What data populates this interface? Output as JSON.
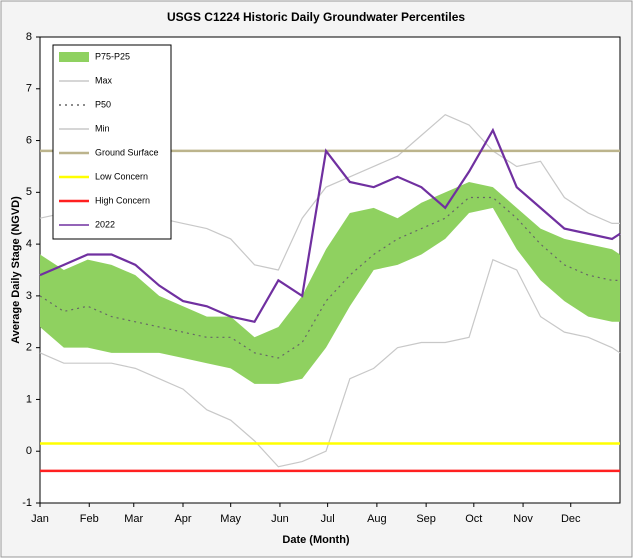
{
  "chart_data": {
    "type": "line",
    "title": "USGS C1224 Historic Daily Groundwater Percentiles",
    "x_label": "Date (Month)",
    "y_label": "Average Daily Stage (NGVD)",
    "x": [
      0,
      15,
      30,
      45,
      60,
      75,
      90,
      105,
      120,
      135,
      150,
      165,
      180,
      195,
      210,
      225,
      240,
      255,
      270,
      285,
      300,
      315,
      330,
      345,
      360,
      365
    ],
    "xlim": [
      0,
      365
    ],
    "xticks": [
      {
        "value": 0,
        "label": "Jan"
      },
      {
        "value": 31,
        "label": "Feb"
      },
      {
        "value": 59,
        "label": "Mar"
      },
      {
        "value": 90,
        "label": "Apr"
      },
      {
        "value": 120,
        "label": "May"
      },
      {
        "value": 151,
        "label": "Jun"
      },
      {
        "value": 181,
        "label": "Jul"
      },
      {
        "value": 212,
        "label": "Aug"
      },
      {
        "value": 243,
        "label": "Sep"
      },
      {
        "value": 273,
        "label": "Oct"
      },
      {
        "value": 304,
        "label": "Nov"
      },
      {
        "value": 334,
        "label": "Dec"
      }
    ],
    "ylim": [
      -1,
      8
    ],
    "yticks": [
      -1,
      0,
      1,
      2,
      3,
      4,
      5,
      6,
      7,
      8
    ],
    "legend": "upper left",
    "band": {
      "name": "P75-P25",
      "color": "#8fd160",
      "upper": [
        3.8,
        3.5,
        3.7,
        3.6,
        3.4,
        3.0,
        2.8,
        2.6,
        2.6,
        2.2,
        2.4,
        3.0,
        3.9,
        4.6,
        4.7,
        4.5,
        4.8,
        5.0,
        5.2,
        5.1,
        4.7,
        4.3,
        4.1,
        4.0,
        3.9,
        3.8
      ],
      "lower": [
        2.4,
        2.0,
        2.0,
        1.9,
        1.9,
        1.9,
        1.8,
        1.7,
        1.6,
        1.3,
        1.3,
        1.4,
        2.0,
        2.8,
        3.5,
        3.6,
        3.8,
        4.1,
        4.6,
        4.7,
        3.9,
        3.3,
        2.9,
        2.6,
        2.5,
        2.5
      ]
    },
    "series": [
      {
        "name": "Max",
        "color": "#c8c8c8",
        "style": "solid",
        "values": [
          4.5,
          4.6,
          4.9,
          4.8,
          4.7,
          4.5,
          4.4,
          4.3,
          4.1,
          3.6,
          3.5,
          4.5,
          5.1,
          5.3,
          5.5,
          5.7,
          6.1,
          6.5,
          6.3,
          5.8,
          5.5,
          5.6,
          4.9,
          4.6,
          4.4,
          4.4
        ]
      },
      {
        "name": "P50",
        "color": "#666666",
        "style": "dotted",
        "values": [
          3.0,
          2.7,
          2.8,
          2.6,
          2.5,
          2.4,
          2.3,
          2.2,
          2.2,
          1.9,
          1.8,
          2.1,
          2.9,
          3.4,
          3.8,
          4.1,
          4.3,
          4.5,
          4.9,
          4.9,
          4.5,
          4.0,
          3.6,
          3.4,
          3.3,
          3.3
        ]
      },
      {
        "name": "Min",
        "color": "#c8c8c8",
        "style": "solid",
        "values": [
          1.9,
          1.7,
          1.7,
          1.7,
          1.6,
          1.4,
          1.2,
          0.8,
          0.6,
          0.2,
          -0.3,
          -0.2,
          0.0,
          1.4,
          1.6,
          2.0,
          2.1,
          2.1,
          2.2,
          3.7,
          3.5,
          2.6,
          2.3,
          2.2,
          2.0,
          1.9
        ]
      },
      {
        "name": "Ground Surface",
        "color": "#bcb48c",
        "style": "solid",
        "level": 5.8
      },
      {
        "name": "Low Concern",
        "color": "#ffff00",
        "style": "solid",
        "level": 0.15
      },
      {
        "name": "High Concern",
        "color": "#ff2020",
        "style": "solid",
        "level": -0.38
      },
      {
        "name": "2022",
        "color": "#7030a0",
        "style": "solid",
        "values": [
          3.4,
          3.6,
          3.8,
          3.8,
          3.6,
          3.2,
          2.9,
          2.8,
          2.6,
          2.5,
          3.3,
          3.0,
          5.8,
          5.2,
          5.1,
          5.3,
          5.1,
          4.7,
          5.4,
          6.2,
          5.1,
          4.7,
          4.3,
          4.2,
          4.1,
          4.2
        ]
      }
    ]
  }
}
